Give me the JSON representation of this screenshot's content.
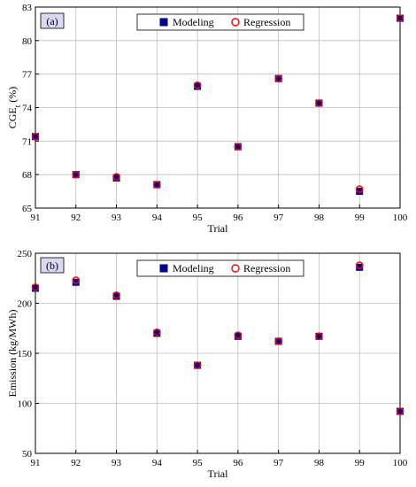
{
  "chart_data": [
    {
      "type": "scatter",
      "panel_label": "(a)",
      "xlabel": "Trial",
      "ylabel": "CGE",
      "ylabel_sub": "t",
      "ylabel_unit": "(%)",
      "x": [
        91,
        92,
        93,
        94,
        95,
        96,
        97,
        98,
        99,
        100
      ],
      "xlim": [
        91,
        100
      ],
      "ylim": [
        65,
        83
      ],
      "yticks": [
        65,
        68,
        71,
        74,
        77,
        80,
        83
      ],
      "xticks": [
        91,
        92,
        93,
        94,
        95,
        96,
        97,
        98,
        99,
        100
      ],
      "grid": true,
      "legend_position": "top",
      "series": [
        {
          "name": "Modeling",
          "marker": "square",
          "color": "#00008B",
          "values": [
            71.4,
            68.0,
            67.7,
            67.1,
            75.9,
            70.5,
            76.6,
            74.4,
            66.5,
            82.0
          ]
        },
        {
          "name": "Regression",
          "marker": "circle-open",
          "color": "#FF0000",
          "values": [
            71.4,
            68.0,
            67.8,
            67.1,
            76.0,
            70.5,
            76.6,
            74.4,
            66.7,
            82.0
          ]
        }
      ]
    },
    {
      "type": "scatter",
      "panel_label": "(b)",
      "xlabel": "Trial",
      "ylabel": "Emission (kg/MWh)",
      "x": [
        91,
        92,
        93,
        94,
        95,
        96,
        97,
        98,
        99,
        100
      ],
      "xlim": [
        91,
        100
      ],
      "ylim": [
        50,
        250
      ],
      "yticks": [
        50,
        100,
        150,
        200,
        250
      ],
      "xticks": [
        91,
        92,
        93,
        94,
        95,
        96,
        97,
        98,
        99,
        100
      ],
      "grid": true,
      "legend_position": "top",
      "series": [
        {
          "name": "Modeling",
          "marker": "square",
          "color": "#00008B",
          "values": [
            215,
            221,
            207,
            170,
            138,
            167,
            162,
            167,
            236,
            92
          ]
        },
        {
          "name": "Regression",
          "marker": "circle-open",
          "color": "#FF0000",
          "values": [
            216,
            223,
            208,
            171,
            138,
            168,
            162,
            167,
            238,
            92
          ]
        }
      ]
    }
  ]
}
